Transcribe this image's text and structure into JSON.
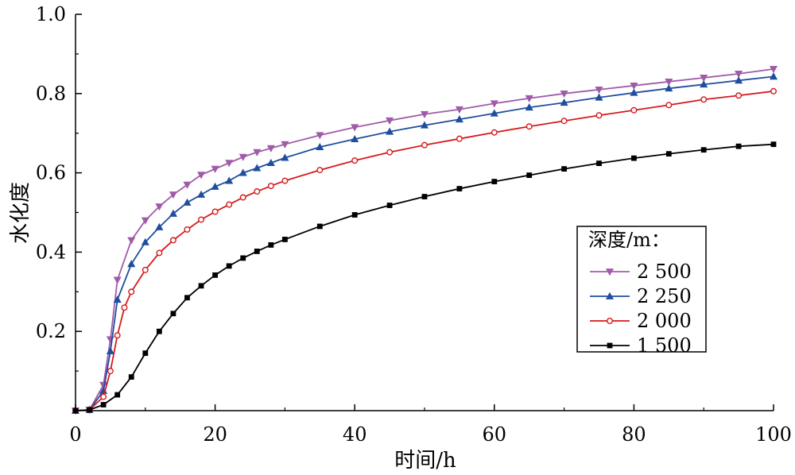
{
  "chart_data": {
    "type": "line",
    "xlabel": "时间/h",
    "ylabel": "水化度",
    "xlim": [
      0,
      100
    ],
    "ylim": [
      0,
      1.0
    ],
    "x_ticks": [
      "0",
      "20",
      "40",
      "60",
      "80",
      "100"
    ],
    "y_ticks": [
      "0.2",
      "0.4",
      "0.6",
      "0.8",
      "1.0"
    ],
    "grid": false,
    "legend": {
      "title": "深度/m：",
      "placement": "right-middle"
    },
    "series": [
      {
        "name": "2 500",
        "color": "#a05ba8",
        "marker": "triangle-down",
        "points": [
          [
            0,
            0.0
          ],
          [
            2,
            0.002
          ],
          [
            4,
            0.065
          ],
          [
            5,
            0.18
          ],
          [
            6,
            0.33
          ],
          [
            8,
            0.43
          ],
          [
            10,
            0.48
          ],
          [
            12,
            0.515
          ],
          [
            14,
            0.545
          ],
          [
            16,
            0.57
          ],
          [
            18,
            0.595
          ],
          [
            20,
            0.61
          ],
          [
            22,
            0.625
          ],
          [
            24,
            0.64
          ],
          [
            26,
            0.652
          ],
          [
            28,
            0.662
          ],
          [
            30,
            0.672
          ],
          [
            35,
            0.695
          ],
          [
            40,
            0.715
          ],
          [
            45,
            0.732
          ],
          [
            50,
            0.748
          ],
          [
            55,
            0.76
          ],
          [
            60,
            0.775
          ],
          [
            65,
            0.788
          ],
          [
            70,
            0.8
          ],
          [
            75,
            0.81
          ],
          [
            80,
            0.82
          ],
          [
            85,
            0.83
          ],
          [
            90,
            0.84
          ],
          [
            95,
            0.85
          ],
          [
            100,
            0.862
          ]
        ]
      },
      {
        "name": "2 250",
        "color": "#1f4e9e",
        "marker": "triangle-up",
        "points": [
          [
            0,
            0.0
          ],
          [
            2,
            0.002
          ],
          [
            4,
            0.05
          ],
          [
            5,
            0.15
          ],
          [
            6,
            0.28
          ],
          [
            8,
            0.37
          ],
          [
            10,
            0.425
          ],
          [
            12,
            0.463
          ],
          [
            14,
            0.497
          ],
          [
            16,
            0.525
          ],
          [
            18,
            0.545
          ],
          [
            20,
            0.565
          ],
          [
            22,
            0.58
          ],
          [
            24,
            0.6
          ],
          [
            26,
            0.612
          ],
          [
            28,
            0.625
          ],
          [
            30,
            0.638
          ],
          [
            35,
            0.665
          ],
          [
            40,
            0.685
          ],
          [
            45,
            0.704
          ],
          [
            50,
            0.72
          ],
          [
            55,
            0.735
          ],
          [
            60,
            0.75
          ],
          [
            65,
            0.765
          ],
          [
            70,
            0.777
          ],
          [
            75,
            0.79
          ],
          [
            80,
            0.802
          ],
          [
            85,
            0.813
          ],
          [
            90,
            0.823
          ],
          [
            95,
            0.833
          ],
          [
            100,
            0.843
          ]
        ]
      },
      {
        "name": "2 000",
        "color": "#d7191c",
        "marker": "circle-open",
        "points": [
          [
            0,
            0.0
          ],
          [
            2,
            0.002
          ],
          [
            4,
            0.035
          ],
          [
            5,
            0.1
          ],
          [
            6,
            0.19
          ],
          [
            7,
            0.26
          ],
          [
            8,
            0.3
          ],
          [
            10,
            0.355
          ],
          [
            12,
            0.398
          ],
          [
            14,
            0.43
          ],
          [
            16,
            0.457
          ],
          [
            18,
            0.482
          ],
          [
            20,
            0.502
          ],
          [
            22,
            0.52
          ],
          [
            24,
            0.538
          ],
          [
            26,
            0.553
          ],
          [
            28,
            0.567
          ],
          [
            30,
            0.58
          ],
          [
            35,
            0.607
          ],
          [
            40,
            0.631
          ],
          [
            45,
            0.652
          ],
          [
            50,
            0.67
          ],
          [
            55,
            0.686
          ],
          [
            60,
            0.702
          ],
          [
            65,
            0.717
          ],
          [
            70,
            0.731
          ],
          [
            75,
            0.745
          ],
          [
            80,
            0.758
          ],
          [
            85,
            0.771
          ],
          [
            90,
            0.785
          ],
          [
            95,
            0.795
          ],
          [
            100,
            0.806
          ]
        ]
      },
      {
        "name": "1 500",
        "color": "#000000",
        "marker": "square",
        "points": [
          [
            0,
            0.0
          ],
          [
            2,
            0.002
          ],
          [
            4,
            0.015
          ],
          [
            6,
            0.04
          ],
          [
            8,
            0.085
          ],
          [
            10,
            0.145
          ],
          [
            12,
            0.2
          ],
          [
            14,
            0.245
          ],
          [
            16,
            0.285
          ],
          [
            18,
            0.315
          ],
          [
            20,
            0.342
          ],
          [
            22,
            0.365
          ],
          [
            24,
            0.385
          ],
          [
            26,
            0.402
          ],
          [
            28,
            0.418
          ],
          [
            30,
            0.432
          ],
          [
            35,
            0.465
          ],
          [
            40,
            0.494
          ],
          [
            45,
            0.518
          ],
          [
            50,
            0.54
          ],
          [
            55,
            0.56
          ],
          [
            60,
            0.578
          ],
          [
            65,
            0.594
          ],
          [
            70,
            0.61
          ],
          [
            75,
            0.624
          ],
          [
            80,
            0.637
          ],
          [
            85,
            0.648
          ],
          [
            90,
            0.658
          ],
          [
            95,
            0.667
          ],
          [
            100,
            0.672
          ]
        ]
      }
    ]
  }
}
